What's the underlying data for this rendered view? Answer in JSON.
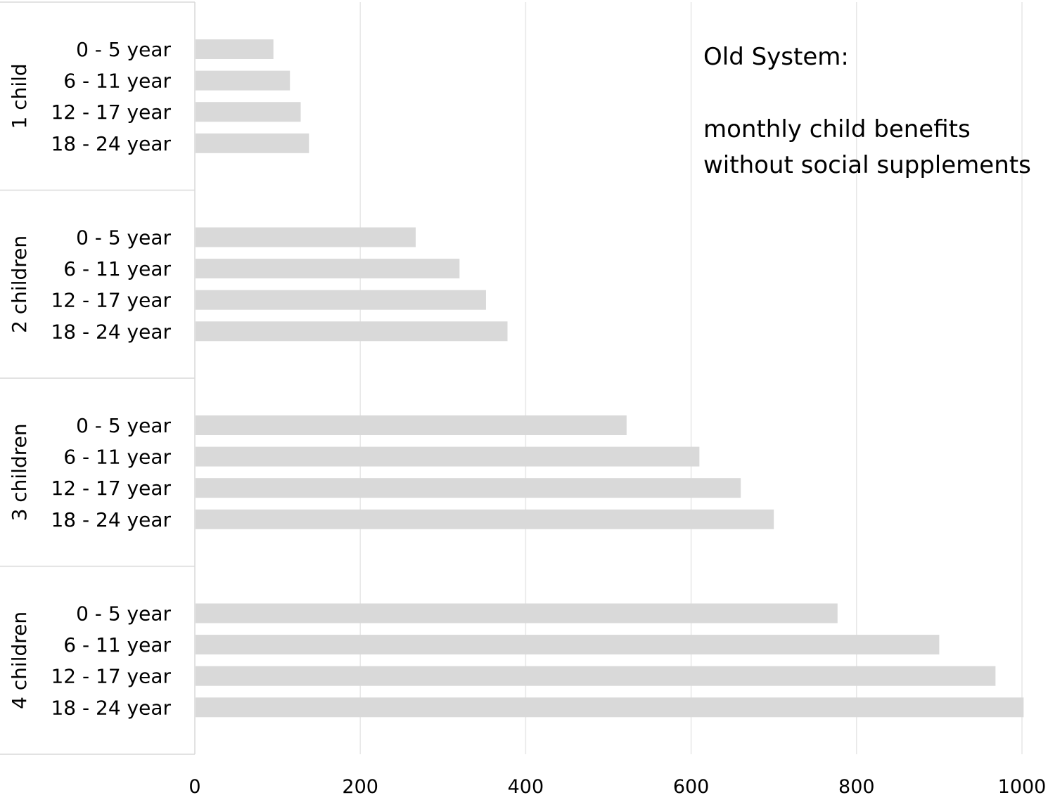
{
  "chart_data": {
    "type": "bar",
    "orientation": "horizontal",
    "title": "",
    "xlabel": "",
    "ylabel": "",
    "xlim": [
      0,
      1000
    ],
    "x_ticks": [
      "0",
      "200",
      "400",
      "600",
      "800",
      "1000"
    ],
    "grid": "vertical",
    "annotation": {
      "heading": "Old System:",
      "lines": [
        "monthly child benefits",
        "without social supplements"
      ]
    },
    "groups": [
      {
        "name": "1 child",
        "categories": [
          "0 - 5 year",
          "6 - 11 year",
          "12 - 17 year",
          "18 - 24 year"
        ],
        "values": [
          95,
          115,
          128,
          138
        ]
      },
      {
        "name": "2 children",
        "categories": [
          "0 - 5 year",
          "6 - 11 year",
          "12 - 17 year",
          "18 - 24 year"
        ],
        "values": [
          267,
          320,
          352,
          378
        ]
      },
      {
        "name": "3 children",
        "categories": [
          "0 - 5 year",
          "6 - 11 year",
          "12 - 17 year",
          "18 - 24 year"
        ],
        "values": [
          522,
          610,
          660,
          700
        ]
      },
      {
        "name": "4 children",
        "categories": [
          "0 - 5 year",
          "6 - 11 year",
          "12 - 17 year",
          "18 - 24 year"
        ],
        "values": [
          777,
          900,
          968,
          1002
        ]
      }
    ],
    "colors": {
      "bar": "#d9d9d9",
      "grid": "#e7e7e7",
      "axis": "#d9d9d9"
    }
  }
}
